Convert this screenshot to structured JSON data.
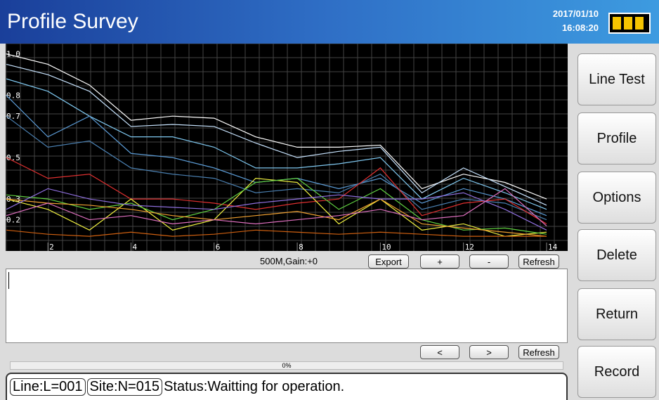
{
  "header": {
    "title": "Profile Survey",
    "date": "2017/01/10",
    "time": "16:08:20"
  },
  "side_buttons": [
    "Line Test",
    "Profile",
    "Options",
    "Delete",
    "Return",
    "Record"
  ],
  "chart_toolbar": {
    "info": "500M,Gain:+0",
    "buttons": [
      "Export",
      "+",
      "-",
      "Refresh"
    ]
  },
  "nav_buttons": [
    "<",
    ">",
    "Refresh"
  ],
  "progress": "0%",
  "status": {
    "line": "Line:L=001",
    "site": "Site:N=015",
    "text": "Status:Waitting for operation."
  },
  "chart_data": {
    "type": "line",
    "x": [
      1,
      2,
      3,
      4,
      5,
      6,
      7,
      8,
      9,
      10,
      11,
      12,
      13,
      14
    ],
    "xlim": [
      1,
      14
    ],
    "xticks": [
      2,
      4,
      6,
      8,
      10,
      12,
      14
    ],
    "ylim": [
      0.09,
      1.05
    ],
    "yticks": [
      {
        "value": 1,
        "label": "1.0"
      },
      0.8,
      0.7,
      0.5,
      0.3,
      0.2
    ],
    "series": [
      {
        "color": "#ffffff",
        "values": [
          1.0,
          0.95,
          0.85,
          0.68,
          0.7,
          0.69,
          0.6,
          0.55,
          0.55,
          0.56,
          0.35,
          0.42,
          0.38,
          0.3
        ]
      },
      {
        "color": "#c8e4ff",
        "values": [
          0.95,
          0.9,
          0.82,
          0.65,
          0.66,
          0.65,
          0.57,
          0.5,
          0.53,
          0.55,
          0.33,
          0.45,
          0.36,
          0.27
        ]
      },
      {
        "color": "#7fc8f0",
        "values": [
          0.88,
          0.82,
          0.7,
          0.6,
          0.6,
          0.55,
          0.45,
          0.45,
          0.47,
          0.5,
          0.3,
          0.4,
          0.33,
          0.25
        ]
      },
      {
        "color": "#5b9bd5",
        "values": [
          0.8,
          0.6,
          0.7,
          0.52,
          0.5,
          0.45,
          0.38,
          0.4,
          0.35,
          0.4,
          0.28,
          0.35,
          0.3,
          0.22
        ]
      },
      {
        "color": "#4a7fb0",
        "values": [
          0.7,
          0.55,
          0.58,
          0.45,
          0.42,
          0.4,
          0.33,
          0.35,
          0.33,
          0.42,
          0.25,
          0.3,
          0.28,
          0.2
        ]
      },
      {
        "color": "#e03030",
        "values": [
          0.5,
          0.4,
          0.42,
          0.3,
          0.3,
          0.28,
          0.25,
          0.28,
          0.3,
          0.45,
          0.22,
          0.28,
          0.3,
          0.18
        ]
      },
      {
        "color": "#f0f040",
        "values": [
          0.3,
          0.25,
          0.15,
          0.3,
          0.15,
          0.2,
          0.4,
          0.38,
          0.18,
          0.3,
          0.15,
          0.18,
          0.12,
          0.14
        ]
      },
      {
        "color": "#60d040",
        "values": [
          0.32,
          0.3,
          0.25,
          0.28,
          0.2,
          0.25,
          0.38,
          0.4,
          0.25,
          0.35,
          0.2,
          0.15,
          0.16,
          0.13
        ]
      },
      {
        "color": "#f0a030",
        "values": [
          0.3,
          0.28,
          0.27,
          0.25,
          0.22,
          0.2,
          0.22,
          0.24,
          0.2,
          0.3,
          0.18,
          0.16,
          0.14,
          0.12
        ]
      },
      {
        "color": "#9070e0",
        "values": [
          0.25,
          0.35,
          0.3,
          0.27,
          0.26,
          0.25,
          0.28,
          0.3,
          0.32,
          0.3,
          0.3,
          0.33,
          0.25,
          0.15
        ]
      },
      {
        "color": "#d06010",
        "values": [
          0.15,
          0.13,
          0.12,
          0.14,
          0.12,
          0.13,
          0.15,
          0.14,
          0.13,
          0.14,
          0.13,
          0.12,
          0.12,
          0.12
        ]
      },
      {
        "color": "#e070c0",
        "values": [
          0.22,
          0.28,
          0.2,
          0.22,
          0.18,
          0.2,
          0.18,
          0.2,
          0.22,
          0.25,
          0.2,
          0.22,
          0.35,
          0.17
        ]
      }
    ]
  }
}
